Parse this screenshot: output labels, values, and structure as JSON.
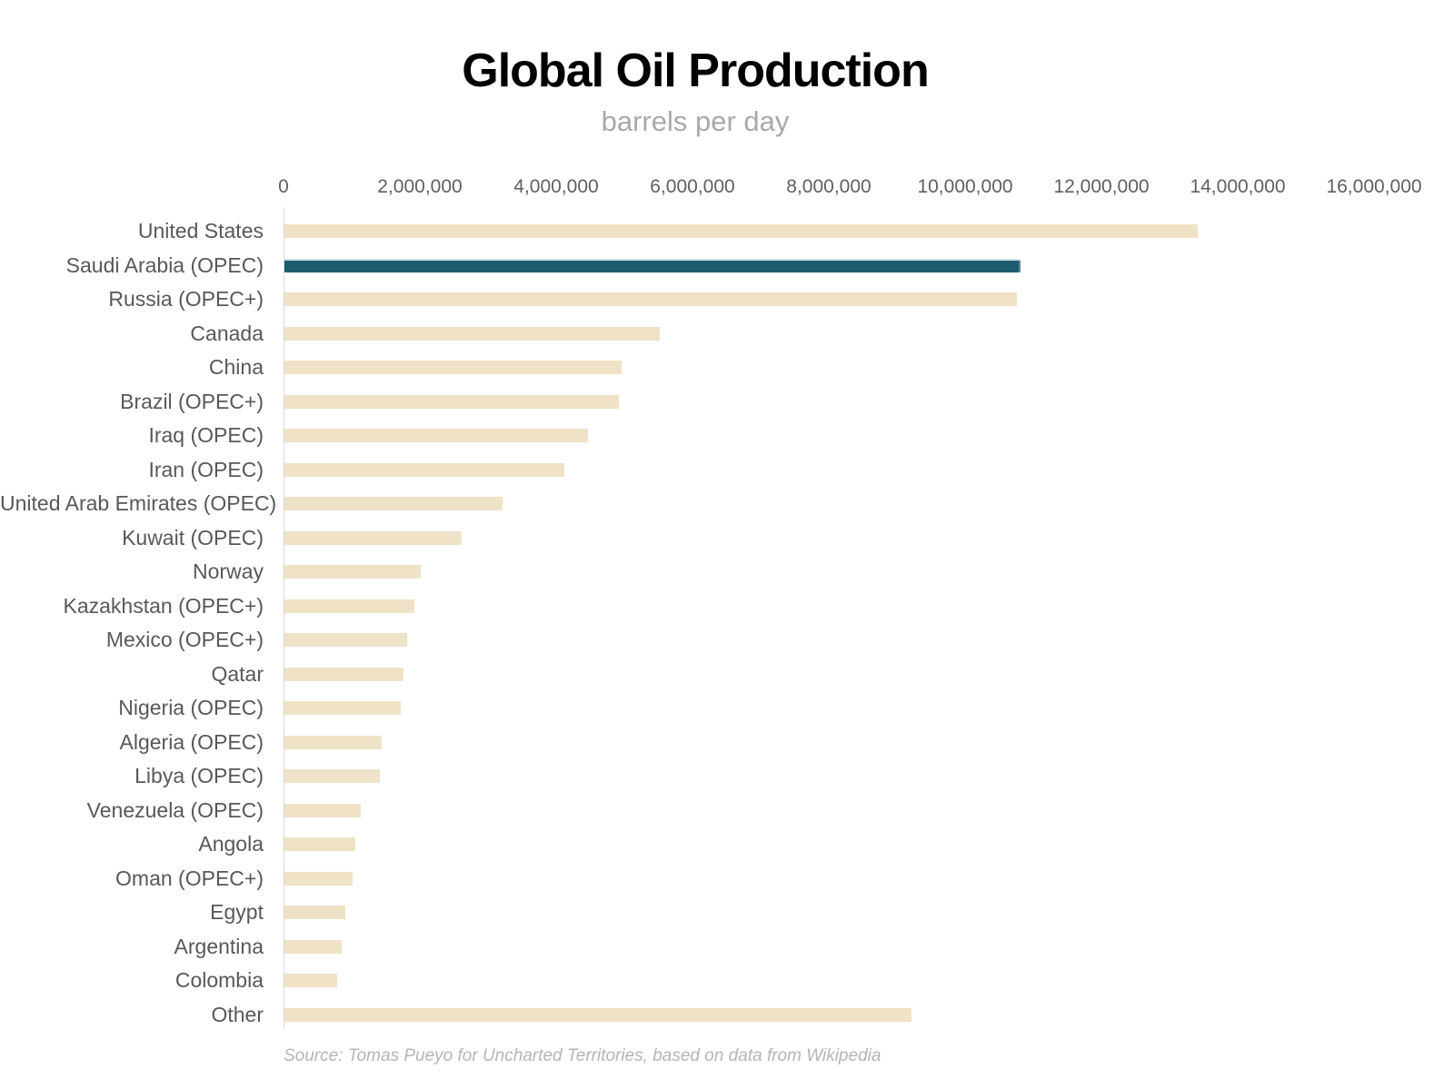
{
  "title": "Global Oil Production",
  "subtitle": "barrels per day",
  "source": "Source: Tomas Pueyo for Uncharted Territories, based on data from Wikipedia",
  "chart_data": {
    "type": "bar",
    "orientation": "horizontal",
    "title": "Global Oil Production",
    "subtitle": "barrels per day",
    "xlabel": "",
    "ylabel": "",
    "xlim": [
      0,
      16000000
    ],
    "grid": false,
    "legend": false,
    "x_ticks": [
      0,
      2000000,
      4000000,
      6000000,
      8000000,
      10000000,
      12000000,
      14000000,
      16000000
    ],
    "x_tick_labels": [
      "0",
      "2,000,000",
      "4,000,000",
      "6,000,000",
      "8,000,000",
      "10,000,000",
      "12,000,000",
      "14,000,000",
      "16,000,000"
    ],
    "categories": [
      "United States",
      "Saudi Arabia (OPEC)",
      "Russia (OPEC+)",
      "Canada",
      "China",
      "Brazil (OPEC+)",
      "Iraq (OPEC)",
      "Iran (OPEC)",
      "United Arab Emirates (OPEC)",
      "Kuwait (OPEC)",
      "Norway",
      "Kazakhstan (OPEC+)",
      "Mexico (OPEC+)",
      "Qatar",
      "Nigeria (OPEC)",
      "Algeria (OPEC)",
      "Libya (OPEC)",
      "Venezuela (OPEC)",
      "Angola",
      "Oman (OPEC+)",
      "Egypt",
      "Argentina",
      "Colombia",
      "Other"
    ],
    "values": [
      13400000,
      10800000,
      10750000,
      5500000,
      4950000,
      4900000,
      4450000,
      4100000,
      3200000,
      2600000,
      2000000,
      1900000,
      1800000,
      1750000,
      1700000,
      1420000,
      1400000,
      1120000,
      1040000,
      1000000,
      890000,
      840000,
      770000,
      9200000
    ],
    "highlight_index": 1,
    "highlight_category": "Saudi Arabia (OPEC)",
    "bar_color": "#f0e2c7",
    "highlight_color": "#1e5c6f"
  }
}
